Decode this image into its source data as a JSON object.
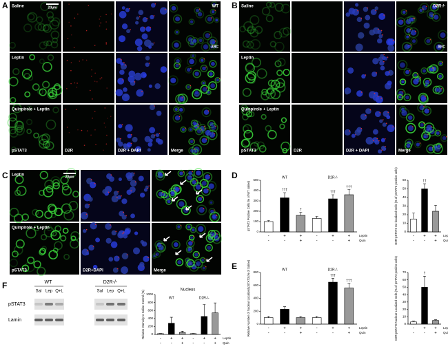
{
  "panel_labels": [
    "A",
    "B",
    "C",
    "D",
    "E",
    "F"
  ],
  "panel_a": {
    "corner": "WT",
    "region": "ARC",
    "scale_bar": "20µm",
    "rows": [
      "Saline",
      "Leptin",
      "Quinpirole + Leptin"
    ],
    "columns": [
      "pSTAT3",
      "D2R",
      "D2R + DAPI",
      "Merge"
    ]
  },
  "panel_b": {
    "corner": "D2R-/-",
    "region": "ARC",
    "rows": [
      "Saline",
      "Leptin",
      "Quinpirole + Leptin"
    ],
    "columns": [
      "pSTAT3",
      "D2R",
      "D2R + DAPI",
      "Merge"
    ]
  },
  "panel_c": {
    "scale_bar": "20µm",
    "rows": [
      "Leptin",
      "Quinpirole + Leptin"
    ],
    "columns": [
      "pSTAT3",
      "D2R+DAPI",
      "Merge"
    ]
  },
  "panel_f_blot": {
    "groups": [
      "WT",
      "D2R-/-"
    ],
    "lanes": [
      "Sal",
      "Lep",
      "Q+L",
      "Sal",
      "Lep",
      "Q+L"
    ],
    "bands": [
      "pSTAT3",
      "Lamin"
    ]
  },
  "chart_data": [
    {
      "type": "bar",
      "y_label": "pSTAT3 Positive Cells (% of WT saline)",
      "group_labels": [
        "WT",
        "D2R-/-"
      ],
      "categories": [
        null,
        null,
        null,
        null,
        null,
        null
      ],
      "values": [
        100,
        330,
        160,
        130,
        320,
        360
      ],
      "errors": [
        10,
        50,
        30,
        20,
        40,
        50
      ],
      "colors": [
        "#ffffff",
        "#000000",
        "#999999",
        "#ffffff",
        "#000000",
        "#999999"
      ],
      "bar_marks": [
        null,
        "†††",
        "†",
        null,
        "†††",
        "†††"
      ],
      "x_rows": [
        {
          "name": "Leptin",
          "labels": [
            "-",
            "+",
            "+",
            "-",
            "+",
            "+"
          ]
        },
        {
          "name": "Quin",
          "labels": [
            "-",
            "-",
            "+",
            "-",
            "-",
            "+"
          ]
        }
      ],
      "ylim": [
        0,
        500
      ],
      "yticks": [
        0,
        100,
        200,
        300,
        400,
        500
      ]
    },
    {
      "type": "bar",
      "y_label": "D2R-pSTAT3 Co-localized Cells (% of pSTAT3 positive cells)",
      "categories": [
        null,
        null,
        null
      ],
      "values": [
        15,
        50,
        24
      ],
      "errors": [
        7,
        6,
        7
      ],
      "colors": [
        "#ffffff",
        "#000000",
        "#999999"
      ],
      "bar_marks": [
        null,
        "††",
        null
      ],
      "x_rows": [
        {
          "name": "Leptin",
          "labels": [
            "-",
            "+",
            "+"
          ]
        },
        {
          "name": "Quin",
          "labels": [
            "-",
            "-",
            "+"
          ]
        }
      ],
      "ylim": [
        0,
        60
      ],
      "yticks": [
        0,
        10,
        20,
        30,
        40,
        50,
        60
      ]
    },
    {
      "type": "bar",
      "y_label": "Relative Number of Nuclear Localized pSTAT3 (% of Saline)",
      "group_labels": [
        "WT",
        "D2R-/-"
      ],
      "categories": [
        null,
        null,
        null,
        null,
        null,
        null
      ],
      "values": [
        100,
        230,
        100,
        100,
        650,
        560
      ],
      "errors": [
        20,
        40,
        20,
        20,
        60,
        70
      ],
      "colors": [
        "#ffffff",
        "#000000",
        "#999999",
        "#ffffff",
        "#000000",
        "#999999"
      ],
      "bar_marks": [
        null,
        null,
        null,
        null,
        "†††",
        "†††"
      ],
      "x_rows": [
        {
          "name": "Leptin",
          "labels": [
            "-",
            "+",
            "+",
            "-",
            "+",
            "+"
          ]
        },
        {
          "name": "Quin",
          "labels": [
            "-",
            "-",
            "+",
            "-",
            "-",
            "+"
          ]
        }
      ],
      "ylim": [
        0,
        800
      ],
      "yticks": [
        0,
        200,
        400,
        600,
        800
      ]
    },
    {
      "type": "bar",
      "y_label": "D2R-pSTAT3 Nuclear Localized Cells (% of pSTAT3 positive cells)",
      "categories": [
        null,
        null,
        null
      ],
      "values": [
        3,
        50,
        5
      ],
      "errors": [
        1,
        15,
        1
      ],
      "colors": [
        "#ffffff",
        "#000000",
        "#999999"
      ],
      "bar_marks": [
        null,
        "†",
        null
      ],
      "x_rows": [
        {
          "name": "Leptin",
          "labels": [
            "-",
            "+",
            "+"
          ]
        },
        {
          "name": "Quin",
          "labels": [
            "-",
            "-",
            "+"
          ]
        }
      ],
      "ylim": [
        0,
        70
      ],
      "yticks": [
        0,
        10,
        20,
        30,
        40,
        50,
        60,
        70
      ]
    },
    {
      "type": "bar",
      "title": "Nucleus",
      "y_label": "Relative Intensity to Saline Control (%)",
      "group_labels": [
        "WT",
        "D2R-/-"
      ],
      "categories": [
        null,
        null,
        null,
        null,
        null,
        null
      ],
      "values": [
        20,
        280,
        50,
        20,
        450,
        540
      ],
      "errors": [
        5,
        150,
        30,
        5,
        300,
        250
      ],
      "colors": [
        "#ffffff",
        "#000000",
        "#999999",
        "#ffffff",
        "#000000",
        "#999999"
      ],
      "x_rows": [
        {
          "name": "Leptin",
          "labels": [
            "-",
            "+",
            "+",
            "-",
            "+",
            "+"
          ]
        },
        {
          "name": "Quin",
          "labels": [
            "-",
            "-",
            "+",
            "-",
            "-",
            "+"
          ]
        }
      ],
      "ylim": [
        0,
        1000
      ],
      "yticks": [
        0,
        200,
        400,
        600,
        800,
        1000
      ]
    }
  ]
}
